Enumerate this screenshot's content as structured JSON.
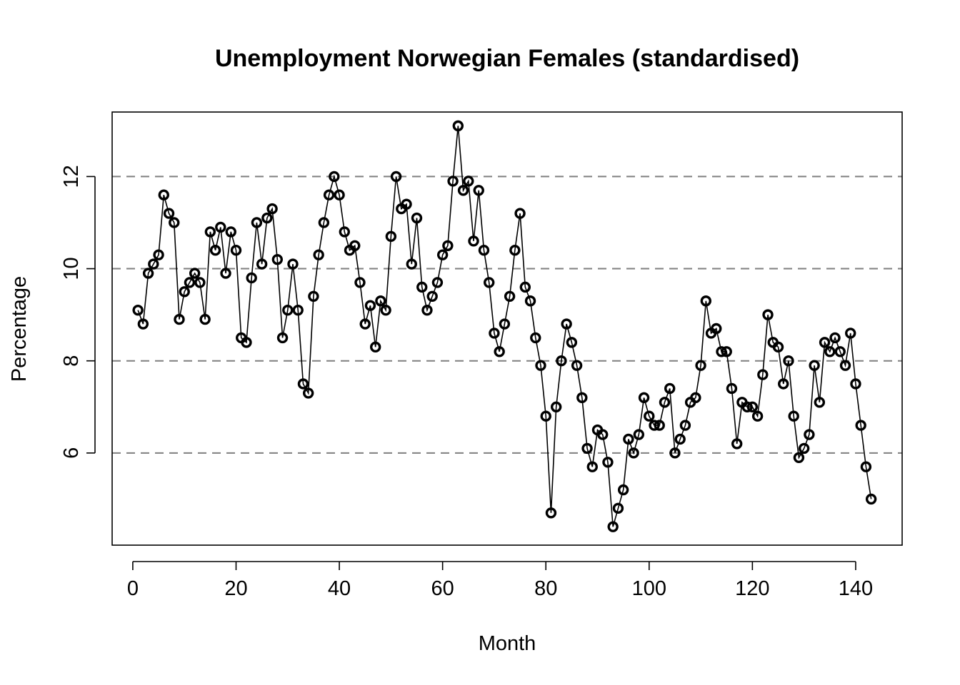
{
  "chart_data": {
    "type": "line",
    "title": "Unemployment Norwegian Females (standardised)",
    "xlabel": "Month",
    "ylabel": "Percentage",
    "xlim": [
      -4,
      149
    ],
    "ylim": [
      4,
      13.4
    ],
    "x_ticks": [
      0,
      20,
      40,
      60,
      80,
      100,
      120,
      140
    ],
    "y_ticks": [
      6,
      8,
      10,
      12
    ],
    "x_tick_labels": [
      "0",
      "20",
      "40",
      "60",
      "80",
      "100",
      "120",
      "140"
    ],
    "y_tick_labels": [
      "6",
      "8",
      "10",
      "12"
    ],
    "reference_lines": [
      6,
      8,
      10,
      12
    ],
    "markers": "open-circles",
    "grid": false,
    "legend": "none",
    "x": [
      1,
      2,
      3,
      4,
      5,
      6,
      7,
      8,
      9,
      10,
      11,
      12,
      13,
      14,
      15,
      16,
      17,
      18,
      19,
      20,
      21,
      22,
      23,
      24,
      25,
      26,
      27,
      28,
      29,
      30,
      31,
      32,
      33,
      34,
      35,
      36,
      37,
      38,
      39,
      40,
      41,
      42,
      43,
      44,
      45,
      46,
      47,
      48,
      49,
      50,
      51,
      52,
      53,
      54,
      55,
      56,
      57,
      58,
      59,
      60,
      61,
      62,
      63,
      64,
      65,
      66,
      67,
      68,
      69,
      70,
      71,
      72,
      73,
      74,
      75,
      76,
      77,
      78,
      79,
      80,
      81,
      82,
      83,
      84,
      85,
      86,
      87,
      88,
      89,
      90,
      91,
      92,
      93,
      94,
      95,
      96,
      97,
      98,
      99,
      100,
      101,
      102,
      103,
      104,
      105,
      106,
      107,
      108,
      109,
      110,
      111,
      112,
      113,
      114,
      115,
      116,
      117,
      118,
      119,
      120,
      121,
      122,
      123,
      124,
      125,
      126,
      127,
      128,
      129,
      130,
      131,
      132,
      133,
      134,
      135,
      136,
      137,
      138,
      139,
      140,
      141,
      142,
      143
    ],
    "y": [
      9.1,
      8.8,
      9.9,
      10.1,
      10.3,
      11.6,
      11.2,
      11.0,
      8.9,
      9.5,
      9.7,
      9.9,
      9.7,
      8.9,
      10.8,
      10.4,
      10.9,
      9.9,
      10.8,
      10.4,
      8.5,
      8.4,
      9.8,
      11.0,
      10.1,
      11.1,
      11.3,
      10.2,
      8.5,
      9.1,
      10.1,
      9.1,
      7.5,
      7.3,
      9.4,
      10.3,
      11.0,
      11.6,
      12.0,
      11.6,
      10.8,
      10.4,
      10.5,
      9.7,
      8.8,
      9.2,
      8.3,
      9.3,
      9.1,
      10.7,
      12.0,
      11.3,
      11.4,
      10.1,
      11.1,
      9.6,
      9.1,
      9.4,
      9.7,
      10.3,
      10.5,
      11.9,
      13.1,
      11.7,
      11.9,
      10.6,
      11.7,
      10.4,
      9.7,
      8.6,
      8.2,
      8.8,
      9.4,
      10.4,
      11.2,
      9.6,
      9.3,
      8.5,
      7.9,
      6.8,
      4.7,
      7.0,
      8.0,
      8.8,
      8.4,
      7.9,
      7.2,
      6.1,
      5.7,
      6.5,
      6.4,
      5.8,
      4.4,
      4.8,
      5.2,
      6.3,
      6.0,
      6.4,
      7.2,
      6.8,
      6.6,
      6.6,
      7.1,
      7.4,
      6.0,
      6.3,
      6.6,
      7.1,
      7.2,
      7.9,
      9.3,
      8.6,
      8.7,
      8.2,
      8.2,
      7.4,
      6.2,
      7.1,
      7.0,
      7.0,
      6.8,
      7.7,
      9.0,
      8.4,
      8.3,
      7.5,
      8.0,
      6.8,
      5.9,
      6.1,
      6.4,
      7.9,
      7.1,
      8.4,
      8.2,
      8.5,
      8.2,
      7.9,
      8.6,
      7.5,
      6.6,
      5.7,
      5.0
    ]
  }
}
